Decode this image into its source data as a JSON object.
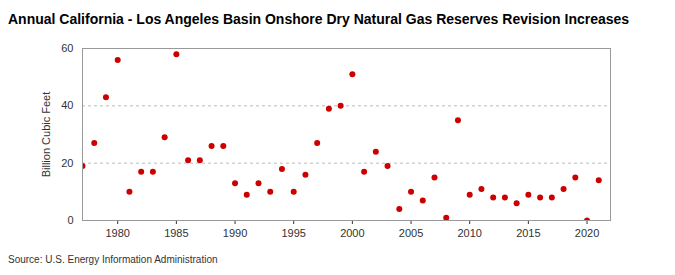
{
  "chart_data": {
    "type": "scatter",
    "title": "Annual California - Los Angeles Basin Onshore Dry Natural Gas Reserves Revision Increases",
    "y_label": "Billion Cubic Feet",
    "source": "Source: U.S. Energy Information Administration",
    "x": [
      1977,
      1978,
      1979,
      1980,
      1981,
      1982,
      1983,
      1984,
      1985,
      1986,
      1987,
      1988,
      1989,
      1990,
      1991,
      1992,
      1993,
      1994,
      1995,
      1996,
      1997,
      1998,
      1999,
      2000,
      2001,
      2002,
      2003,
      2004,
      2005,
      2006,
      2007,
      2008,
      2009,
      2010,
      2011,
      2012,
      2013,
      2014,
      2015,
      2016,
      2017,
      2018,
      2019,
      2020,
      2021
    ],
    "values": [
      19,
      27,
      43,
      56,
      10,
      17,
      17,
      29,
      58,
      21,
      21,
      26,
      26,
      13,
      9,
      13,
      10,
      18,
      10,
      16,
      27,
      39,
      40,
      51,
      17,
      24,
      19,
      4,
      10,
      7,
      15,
      1,
      35,
      9,
      11,
      8,
      8,
      6,
      9,
      8,
      8,
      11,
      15,
      0,
      14
    ],
    "color": "#cc0000",
    "marker": "circle",
    "xlim": [
      1977,
      2022
    ],
    "xticks": [
      1980,
      1985,
      1990,
      1995,
      2000,
      2005,
      2010,
      2015,
      2020
    ],
    "ylim": [
      0,
      60
    ],
    "yticks": [
      0,
      20,
      40,
      60
    ],
    "grid": true
  }
}
